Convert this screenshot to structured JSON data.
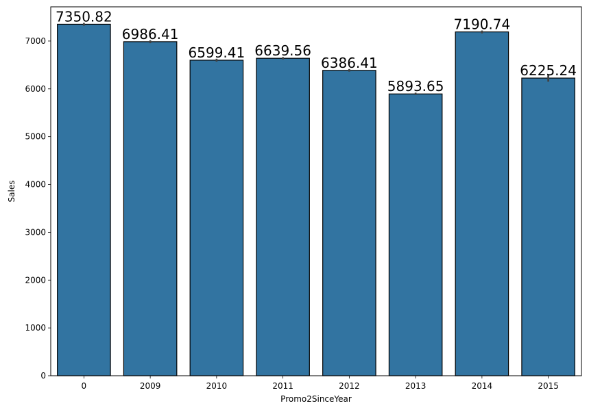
{
  "chart_data": {
    "type": "bar",
    "title": "",
    "xlabel": "Promo2SinceYear",
    "ylabel": "Sales",
    "categories": [
      "0",
      "2009",
      "2010",
      "2011",
      "2012",
      "2013",
      "2014",
      "2015"
    ],
    "values": [
      7350.82,
      6986.41,
      6599.41,
      6639.56,
      6386.41,
      5893.65,
      7190.74,
      6225.24
    ],
    "value_labels": [
      "7350.82",
      "6986.41",
      "6599.41",
      "6639.56",
      "6386.41",
      "5893.65",
      "7190.74",
      "6225.24"
    ],
    "error_bars": [
      [
        7320,
        7380
      ],
      [
        6955,
        7015
      ],
      [
        6570,
        6630
      ],
      [
        6615,
        6665
      ],
      [
        6360,
        6415
      ],
      [
        5870,
        5920
      ],
      [
        7160,
        7220
      ],
      [
        6150,
        6300
      ]
    ],
    "ylim": [
      0,
      7715
    ],
    "yticks": [
      0,
      1000,
      2000,
      3000,
      4000,
      5000,
      6000,
      7000
    ],
    "ytick_labels": [
      "0",
      "1000",
      "2000",
      "3000",
      "4000",
      "5000",
      "6000",
      "7000"
    ],
    "bar_color": "#3274a1",
    "edge_color": "#000000",
    "error_color": "#424242",
    "grid": false,
    "legend": "none"
  }
}
